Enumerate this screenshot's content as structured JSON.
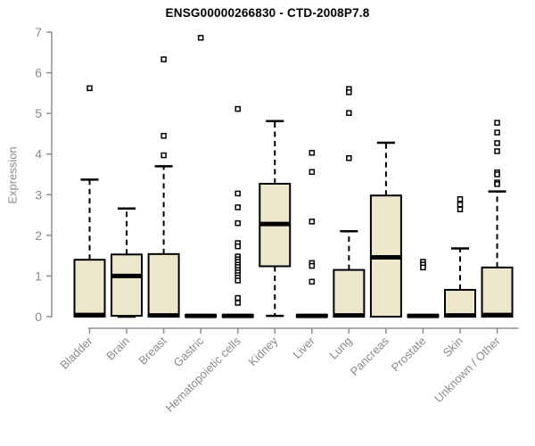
{
  "colors": {
    "box_fill": "#EDE7CD",
    "box_border": "#000000",
    "axis": "#8F8F8F",
    "tick_text": "#8A8A8A",
    "title_text": "#000000",
    "background": "#FFFFFF"
  },
  "chart_data": {
    "type": "box",
    "title": "ENSG00000266830 - CTD-2008P7.8",
    "xlabel": "",
    "ylabel": "Expression",
    "ylim": [
      0,
      7
    ],
    "yticks": [
      0,
      1,
      2,
      3,
      4,
      5,
      6,
      7
    ],
    "grid": false,
    "legend": false,
    "categories": [
      "Bladder",
      "Brain",
      "Breast",
      "Gastric",
      "Hematopoietic cells",
      "Kidney",
      "Liver",
      "Lung",
      "Pancreas",
      "Prostate",
      "Skin",
      "Unknown / Other"
    ],
    "boxes": [
      {
        "category": "Bladder",
        "whisker_low": 0,
        "q1": 0,
        "median": 0.04,
        "q3": 1.4,
        "whisker_high": 3.37,
        "outliers": [
          5.62
        ]
      },
      {
        "category": "Brain",
        "whisker_low": 0,
        "q1": 0.02,
        "median": 1.0,
        "q3": 1.53,
        "whisker_high": 2.66,
        "outliers": []
      },
      {
        "category": "Breast",
        "whisker_low": 0,
        "q1": 0,
        "median": 0.03,
        "q3": 1.54,
        "whisker_high": 3.7,
        "outliers": [
          6.33,
          4.45,
          3.97
        ]
      },
      {
        "category": "Gastric",
        "whisker_low": 0,
        "q1": 0,
        "median": 0.02,
        "q3": 0.04,
        "whisker_high": 0.04,
        "outliers": [
          6.86
        ]
      },
      {
        "category": "Hematopoietic cells",
        "whisker_low": 0,
        "q1": 0,
        "median": 0.02,
        "q3": 0.04,
        "whisker_high": 0.04,
        "outliers": [
          5.11,
          3.03,
          2.69,
          2.3,
          1.81,
          1.73,
          1.48,
          1.41,
          1.35,
          1.28,
          1.22,
          1.15,
          1.09,
          1.02,
          0.96,
          0.89,
          0.46,
          0.34
        ]
      },
      {
        "category": "Kidney",
        "whisker_low": 0.02,
        "q1": 1.24,
        "median": 2.28,
        "q3": 3.27,
        "whisker_high": 4.81,
        "outliers": []
      },
      {
        "category": "Liver",
        "whisker_low": 0,
        "q1": 0,
        "median": 0.02,
        "q3": 0.04,
        "whisker_high": 0.04,
        "outliers": [
          4.03,
          3.56,
          2.34,
          1.32,
          1.25,
          0.86
        ]
      },
      {
        "category": "Lung",
        "whisker_low": 0,
        "q1": 0,
        "median": 0.03,
        "q3": 1.15,
        "whisker_high": 2.1,
        "outliers": [
          5.6,
          5.52,
          5.01,
          3.9
        ]
      },
      {
        "category": "Pancreas",
        "whisker_low": 0,
        "q1": 0,
        "median": 1.46,
        "q3": 2.98,
        "whisker_high": 4.28,
        "outliers": []
      },
      {
        "category": "Prostate",
        "whisker_low": 0,
        "q1": 0,
        "median": 0.02,
        "q3": 0.04,
        "whisker_high": 0.04,
        "outliers": [
          1.35,
          1.28,
          1.21
        ]
      },
      {
        "category": "Skin",
        "whisker_low": 0,
        "q1": 0,
        "median": 0.03,
        "q3": 0.66,
        "whisker_high": 1.68,
        "outliers": [
          2.89,
          2.76,
          2.64
        ]
      },
      {
        "category": "Unknown / Other",
        "whisker_low": 0,
        "q1": 0,
        "median": 0.04,
        "q3": 1.21,
        "whisker_high": 3.08,
        "outliers": [
          4.77,
          4.53,
          4.27,
          4.07,
          3.55,
          3.5,
          3.3,
          3.26
        ]
      }
    ]
  }
}
